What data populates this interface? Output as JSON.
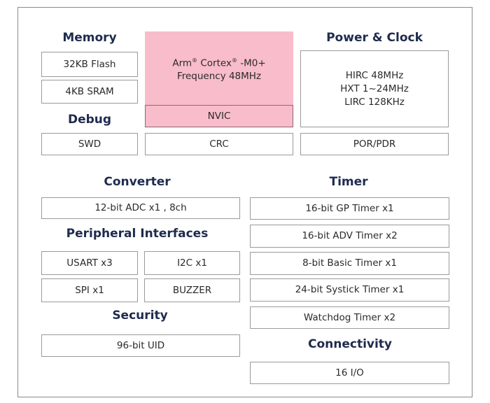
{
  "memory": {
    "title": "Memory",
    "items": [
      "32KB Flash",
      "4KB SRAM"
    ]
  },
  "debug": {
    "title": "Debug",
    "items": [
      "SWD"
    ]
  },
  "core": {
    "line1_a": "Arm",
    "line1_b": "Cortex",
    "line1_c": "-M0+",
    "reg": "®",
    "line2": "Frequency 48MHz",
    "nvic": "NVIC",
    "crc": "CRC",
    "color": "#f8bccb"
  },
  "power": {
    "title": "Power & Clock",
    "items": [
      "HIRC 48MHz",
      "HXT 1~24MHz",
      "LIRC 128KHz"
    ],
    "por": "POR/PDR"
  },
  "converter": {
    "title": "Converter",
    "items": [
      "12-bit ADC x1 , 8ch"
    ]
  },
  "peripheral": {
    "title": "Peripheral Interfaces",
    "items": [
      "USART x3",
      "I2C x1",
      "SPI x1",
      "BUZZER"
    ]
  },
  "security": {
    "title": "Security",
    "items": [
      "96-bit UID"
    ]
  },
  "timer": {
    "title": "Timer",
    "items": [
      "16-bit GP Timer x1",
      "16-bit  ADV Timer x2",
      "8-bit Basic Timer x1",
      "24-bit  Systick Timer x1",
      "Watchdog Timer x2"
    ]
  },
  "connectivity": {
    "title": "Connectivity",
    "items": [
      "16 I/O"
    ]
  }
}
